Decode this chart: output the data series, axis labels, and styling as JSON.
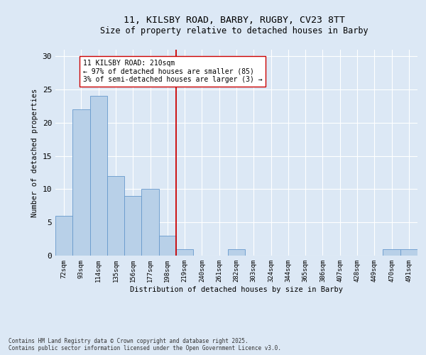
{
  "title_line1": "11, KILSBY ROAD, BARBY, RUGBY, CV23 8TT",
  "title_line2": "Size of property relative to detached houses in Barby",
  "xlabel": "Distribution of detached houses by size in Barby",
  "ylabel": "Number of detached properties",
  "categories": [
    "72sqm",
    "93sqm",
    "114sqm",
    "135sqm",
    "156sqm",
    "177sqm",
    "198sqm",
    "219sqm",
    "240sqm",
    "261sqm",
    "282sqm",
    "303sqm",
    "324sqm",
    "344sqm",
    "365sqm",
    "386sqm",
    "407sqm",
    "428sqm",
    "449sqm",
    "470sqm",
    "491sqm"
  ],
  "values": [
    6,
    22,
    24,
    12,
    9,
    10,
    3,
    1,
    0,
    0,
    1,
    0,
    0,
    0,
    0,
    0,
    0,
    0,
    0,
    1,
    1
  ],
  "bar_color": "#b8d0e8",
  "bar_edge_color": "#6699cc",
  "vline_x": 6.5,
  "vline_color": "#cc0000",
  "annotation_text": "11 KILSBY ROAD: 210sqm\n← 97% of detached houses are smaller (85)\n3% of semi-detached houses are larger (3) →",
  "annotation_box_edge": "#cc0000",
  "annotation_box_bg": "#ffffff",
  "ylim": [
    0,
    31
  ],
  "yticks": [
    0,
    5,
    10,
    15,
    20,
    25,
    30
  ],
  "footer_text": "Contains HM Land Registry data © Crown copyright and database right 2025.\nContains public sector information licensed under the Open Government Licence v3.0.",
  "plot_bg_color": "#dce8f5",
  "fig_bg_color": "#dce8f5",
  "grid_color": "#ffffff"
}
